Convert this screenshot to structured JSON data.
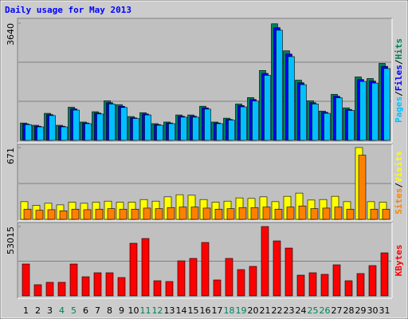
{
  "chart_data": [
    {
      "type": "bar",
      "title": "Daily usage for May 2013",
      "ylim": [
        0,
        3640
      ],
      "yticks": [
        3640
      ],
      "gridlines": [
        1213,
        2427
      ],
      "legend_separator": "/",
      "series": [
        {
          "name": "Hits",
          "color": "#00805c",
          "values": [
            540,
            470,
            840,
            470,
            1030,
            570,
            890,
            1230,
            1110,
            740,
            860,
            520,
            570,
            790,
            790,
            1060,
            570,
            690,
            1130,
            1330,
            2170,
            3620,
            2780,
            1870,
            1230,
            910,
            1430,
            1010,
            1970,
            1920,
            2390
          ]
        },
        {
          "name": "Files",
          "color": "#0000ff",
          "values": [
            510,
            440,
            800,
            440,
            980,
            540,
            850,
            1170,
            1060,
            700,
            820,
            490,
            540,
            750,
            750,
            1010,
            540,
            650,
            1080,
            1270,
            2080,
            3500,
            2680,
            1790,
            1170,
            870,
            1370,
            960,
            1890,
            1840,
            2300
          ]
        },
        {
          "name": "Pages",
          "color": "#00c0ff",
          "values": [
            490,
            420,
            770,
            420,
            940,
            520,
            820,
            1130,
            1020,
            680,
            790,
            470,
            520,
            720,
            720,
            970,
            520,
            630,
            1040,
            1220,
            2020,
            3420,
            2600,
            1730,
            1130,
            840,
            1320,
            930,
            1830,
            1780,
            2230
          ]
        }
      ]
    },
    {
      "type": "bar",
      "ylim": [
        0,
        671
      ],
      "yticks": [
        671
      ],
      "gridlines": [
        335
      ],
      "legend_separator": "/",
      "series": [
        {
          "name": "Visits",
          "color": "#ffff00",
          "values": [
            165,
            130,
            150,
            135,
            160,
            150,
            160,
            170,
            160,
            160,
            185,
            170,
            210,
            230,
            225,
            185,
            160,
            170,
            200,
            195,
            210,
            165,
            215,
            245,
            180,
            185,
            215,
            165,
            671,
            165,
            160
          ]
        },
        {
          "name": "Sites",
          "color": "#ff8000",
          "values": [
            95,
            85,
            90,
            80,
            95,
            90,
            95,
            100,
            95,
            95,
            105,
            100,
            110,
            115,
            115,
            105,
            95,
            100,
            110,
            110,
            115,
            95,
            115,
            125,
            100,
            105,
            115,
            95,
            600,
            95,
            95
          ]
        }
      ]
    },
    {
      "type": "bar",
      "ylim": [
        0,
        53015
      ],
      "yticks": [
        53015
      ],
      "gridlines": [
        26500
      ],
      "categories": [
        "1",
        "2",
        "3",
        "4",
        "5",
        "6",
        "7",
        "8",
        "9",
        "10",
        "11",
        "12",
        "13",
        "14",
        "15",
        "16",
        "17",
        "18",
        "19",
        "20",
        "21",
        "22",
        "23",
        "24",
        "25",
        "26",
        "27",
        "28",
        "29",
        "30",
        "31"
      ],
      "category_colors": [
        "#000000",
        "#000000",
        "#000000",
        "#00805c",
        "#00805c",
        "#000000",
        "#000000",
        "#000000",
        "#000000",
        "#000000",
        "#00805c",
        "#00805c",
        "#000000",
        "#000000",
        "#000000",
        "#000000",
        "#000000",
        "#00805c",
        "#00805c",
        "#000000",
        "#000000",
        "#000000",
        "#000000",
        "#000000",
        "#00805c",
        "#00805c",
        "#000000",
        "#000000",
        "#000000",
        "#000000",
        "#000000"
      ],
      "series": [
        {
          "name": "KBytes",
          "color": "#ff0000",
          "values": [
            24360,
            8530,
            10360,
            10360,
            24360,
            14620,
            17670,
            17670,
            14010,
            40200,
            43850,
            11570,
            10970,
            26800,
            28630,
            40810,
            12180,
            28630,
            20100,
            22530,
            52990,
            42020,
            36540,
            15840,
            17670,
            16450,
            23750,
            11570,
            17060,
            23140,
            32890
          ]
        }
      ]
    }
  ]
}
